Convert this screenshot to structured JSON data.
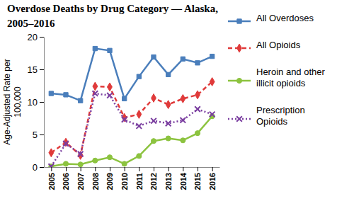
{
  "chart_data": {
    "type": "line",
    "title": "Overdose Deaths by Drug Category — Alaska, 2005–2016",
    "y_label": "Age-Adjusted Rate per 100,000",
    "categories": [
      "2005",
      "2006",
      "2007",
      "2008",
      "2009",
      "2010",
      "2011",
      "2012",
      "2013",
      "2014",
      "2015",
      "2016"
    ],
    "series": [
      {
        "name": "All Overdoses",
        "color": "#4a7ebb",
        "marker": "square",
        "line_style": "solid",
        "values": [
          11.3,
          11.1,
          10.2,
          18.2,
          17.9,
          10.5,
          13.9,
          16.9,
          14.2,
          16.6,
          16.0,
          17.0
        ]
      },
      {
        "name": "All Opioids",
        "color": "#e03a3a",
        "marker": "diamond",
        "line_style": "dashed",
        "values": [
          2.2,
          3.8,
          1.8,
          12.4,
          12.3,
          7.6,
          8.1,
          10.6,
          9.6,
          10.5,
          11.1,
          13.1
        ]
      },
      {
        "name": "Heroin and other illicit opioids",
        "color": "#8cc33f",
        "marker": "circle",
        "line_style": "solid",
        "values": [
          0.1,
          0.5,
          0.4,
          1.0,
          1.5,
          0.5,
          1.7,
          4.0,
          4.4,
          4.1,
          5.2,
          7.8
        ]
      },
      {
        "name": "Prescription Opioids",
        "color": "#7b3fa0",
        "marker": "x",
        "line_style": "dotted",
        "values": [
          0.1,
          3.6,
          2.0,
          11.3,
          11.0,
          7.3,
          6.3,
          7.1,
          6.7,
          7.2,
          8.9,
          8.1
        ]
      }
    ],
    "ylim": [
      0,
      20
    ],
    "yticks": [
      0,
      5,
      10,
      15,
      20
    ],
    "grid": false,
    "legend": "right"
  }
}
